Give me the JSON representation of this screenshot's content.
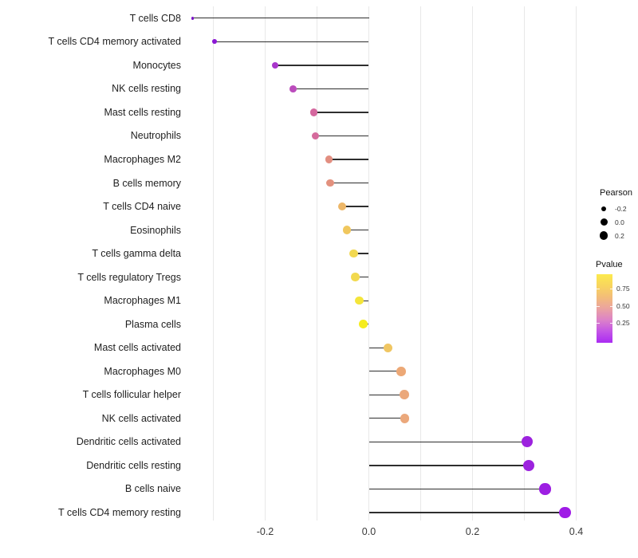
{
  "chart_data": {
    "type": "scatter",
    "variant": "lollipop",
    "orientation": "horizontal",
    "title": "",
    "xlabel": "",
    "ylabel": "",
    "xlim": [
      -0.385,
      0.425
    ],
    "baseline": 0.0,
    "grid": "vertical-only",
    "x_tick_labels": [
      {
        "value": -0.2,
        "label": "-0.2"
      },
      {
        "value": 0.0,
        "label": "0.0"
      },
      {
        "value": 0.2,
        "label": "0.2"
      },
      {
        "value": 0.4,
        "label": "0.4"
      }
    ],
    "x_gridline_values": [
      -0.3,
      -0.2,
      -0.1,
      0.0,
      0.1,
      0.2,
      0.3,
      0.4
    ],
    "points": [
      {
        "label": "T cells CD8",
        "pearson": -0.34,
        "color": "#7b13c8"
      },
      {
        "label": "T cells CD4 memory activated",
        "pearson": -0.298,
        "color": "#8b17d4"
      },
      {
        "label": "Monocytes",
        "pearson": -0.181,
        "color": "#a836cb"
      },
      {
        "label": "NK cells resting",
        "pearson": -0.146,
        "color": "#bb4cbc"
      },
      {
        "label": "Mast cells resting",
        "pearson": -0.106,
        "color": "#d4679e"
      },
      {
        "label": "Neutrophils",
        "pearson": -0.103,
        "color": "#d56a9c"
      },
      {
        "label": "Macrophages M2",
        "pearson": -0.077,
        "color": "#e28e80"
      },
      {
        "label": "B cells memory",
        "pearson": -0.074,
        "color": "#e3917e"
      },
      {
        "label": "T cells CD4 naive",
        "pearson": -0.052,
        "color": "#edb768"
      },
      {
        "label": "Eosinophils",
        "pearson": -0.042,
        "color": "#f0c75e"
      },
      {
        "label": "T cells gamma delta",
        "pearson": -0.029,
        "color": "#f2d850"
      },
      {
        "label": "T cells regulatory  Tregs",
        "pearson": -0.026,
        "color": "#f2d94e"
      },
      {
        "label": "Macrophages M1",
        "pearson": -0.018,
        "color": "#f4e53a"
      },
      {
        "label": "Plasma cells",
        "pearson": -0.011,
        "color": "#f5ec1e"
      },
      {
        "label": "Mast cells activated",
        "pearson": 0.037,
        "color": "#f0c662"
      },
      {
        "label": "Macrophages M0",
        "pearson": 0.062,
        "color": "#eca876"
      },
      {
        "label": "T cells follicular helper",
        "pearson": 0.068,
        "color": "#eba87b"
      },
      {
        "label": "NK cells activated",
        "pearson": 0.069,
        "color": "#eba87b"
      },
      {
        "label": "Dendritic cells activated",
        "pearson": 0.305,
        "color": "#9c22de"
      },
      {
        "label": "Dendritic cells resting",
        "pearson": 0.308,
        "color": "#9c22de"
      },
      {
        "label": "B cells naive",
        "pearson": 0.34,
        "color": "#9d1fe2"
      },
      {
        "label": "T cells CD4 memory resting",
        "pearson": 0.378,
        "color": "#9f1be6"
      }
    ],
    "legend": {
      "position": "right",
      "size_legend": {
        "title": "Pearson",
        "dot_color": "#000000",
        "entries": [
          {
            "label": "-0.2",
            "radius": 3.4
          },
          {
            "label": "0.0",
            "radius": 4.5
          },
          {
            "label": "0.2",
            "radius": 5.4
          }
        ]
      },
      "color_legend": {
        "title": "Pvalue",
        "tick_labels": [
          "0.75",
          "0.50",
          "0.25"
        ],
        "gradient_top_to_bottom": [
          "#fcea4d",
          "#f8d55e",
          "#f3bd79",
          "#eba3a0",
          "#dc82c8",
          "#c355e6",
          "#aa2bf2"
        ]
      }
    },
    "styles": {
      "background": "#ffffff",
      "grid_color": "#e8e8e8",
      "stem_color": "#2e2e2e",
      "y_label_color": "#1f1f1f",
      "x_tick_color": "#3a3a3a"
    }
  }
}
